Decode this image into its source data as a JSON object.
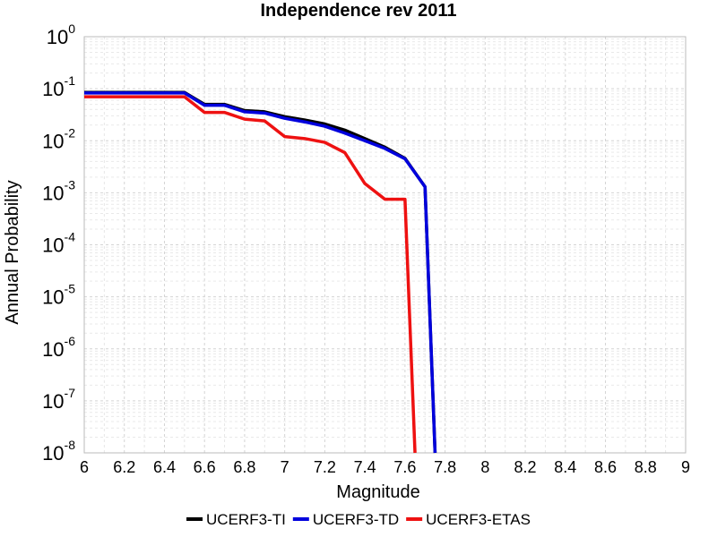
{
  "chart_data": {
    "type": "line",
    "title": "Independence rev 2011",
    "xlabel": "Magnitude",
    "ylabel": "Annual Probability",
    "xlim": [
      6,
      9
    ],
    "ylim": [
      1e-08,
      1
    ],
    "yscale": "log",
    "grid": true,
    "legend_position": "bottom",
    "x_ticks": [
      "6",
      "6.2",
      "6.4",
      "6.6",
      "6.8",
      "7",
      "7.2",
      "7.4",
      "7.6",
      "7.8",
      "8",
      "8.2",
      "8.4",
      "8.6",
      "8.8",
      "9"
    ],
    "y_ticks": [
      {
        "base": "10",
        "exp": "0"
      },
      {
        "base": "10",
        "exp": "-1"
      },
      {
        "base": "10",
        "exp": "-2"
      },
      {
        "base": "10",
        "exp": "-3"
      },
      {
        "base": "10",
        "exp": "-4"
      },
      {
        "base": "10",
        "exp": "-5"
      },
      {
        "base": "10",
        "exp": "-6"
      },
      {
        "base": "10",
        "exp": "-7"
      },
      {
        "base": "10",
        "exp": "-8"
      }
    ],
    "series": [
      {
        "name": "UCERF3-TI",
        "color": "#000000",
        "x": [
          6.0,
          6.1,
          6.2,
          6.3,
          6.4,
          6.5,
          6.6,
          6.7,
          6.8,
          6.9,
          7.0,
          7.1,
          7.2,
          7.3,
          7.4,
          7.5,
          7.6,
          7.7,
          7.75
        ],
        "y": [
          0.085,
          0.085,
          0.085,
          0.085,
          0.085,
          0.085,
          0.05,
          0.05,
          0.038,
          0.036,
          0.029,
          0.025,
          0.021,
          0.016,
          0.011,
          0.0075,
          0.0046,
          0.0013,
          1e-08
        ]
      },
      {
        "name": "UCERF3-TD",
        "color": "#0000dd",
        "x": [
          6.0,
          6.1,
          6.2,
          6.3,
          6.4,
          6.5,
          6.6,
          6.7,
          6.8,
          6.9,
          7.0,
          7.1,
          7.2,
          7.3,
          7.4,
          7.5,
          7.6,
          7.7,
          7.75
        ],
        "y": [
          0.083,
          0.083,
          0.083,
          0.083,
          0.083,
          0.083,
          0.048,
          0.048,
          0.036,
          0.034,
          0.027,
          0.023,
          0.019,
          0.014,
          0.01,
          0.0071,
          0.0045,
          0.0013,
          1e-08
        ]
      },
      {
        "name": "UCERF3-ETAS",
        "color": "#ee1111",
        "x": [
          6.0,
          6.1,
          6.2,
          6.3,
          6.4,
          6.5,
          6.6,
          6.7,
          6.8,
          6.9,
          7.0,
          7.1,
          7.2,
          7.3,
          7.4,
          7.5,
          7.6,
          7.65
        ],
        "y": [
          0.07,
          0.07,
          0.07,
          0.07,
          0.07,
          0.07,
          0.035,
          0.035,
          0.026,
          0.024,
          0.012,
          0.011,
          0.0093,
          0.0059,
          0.0015,
          0.00075,
          0.00075,
          1e-08
        ]
      }
    ]
  }
}
